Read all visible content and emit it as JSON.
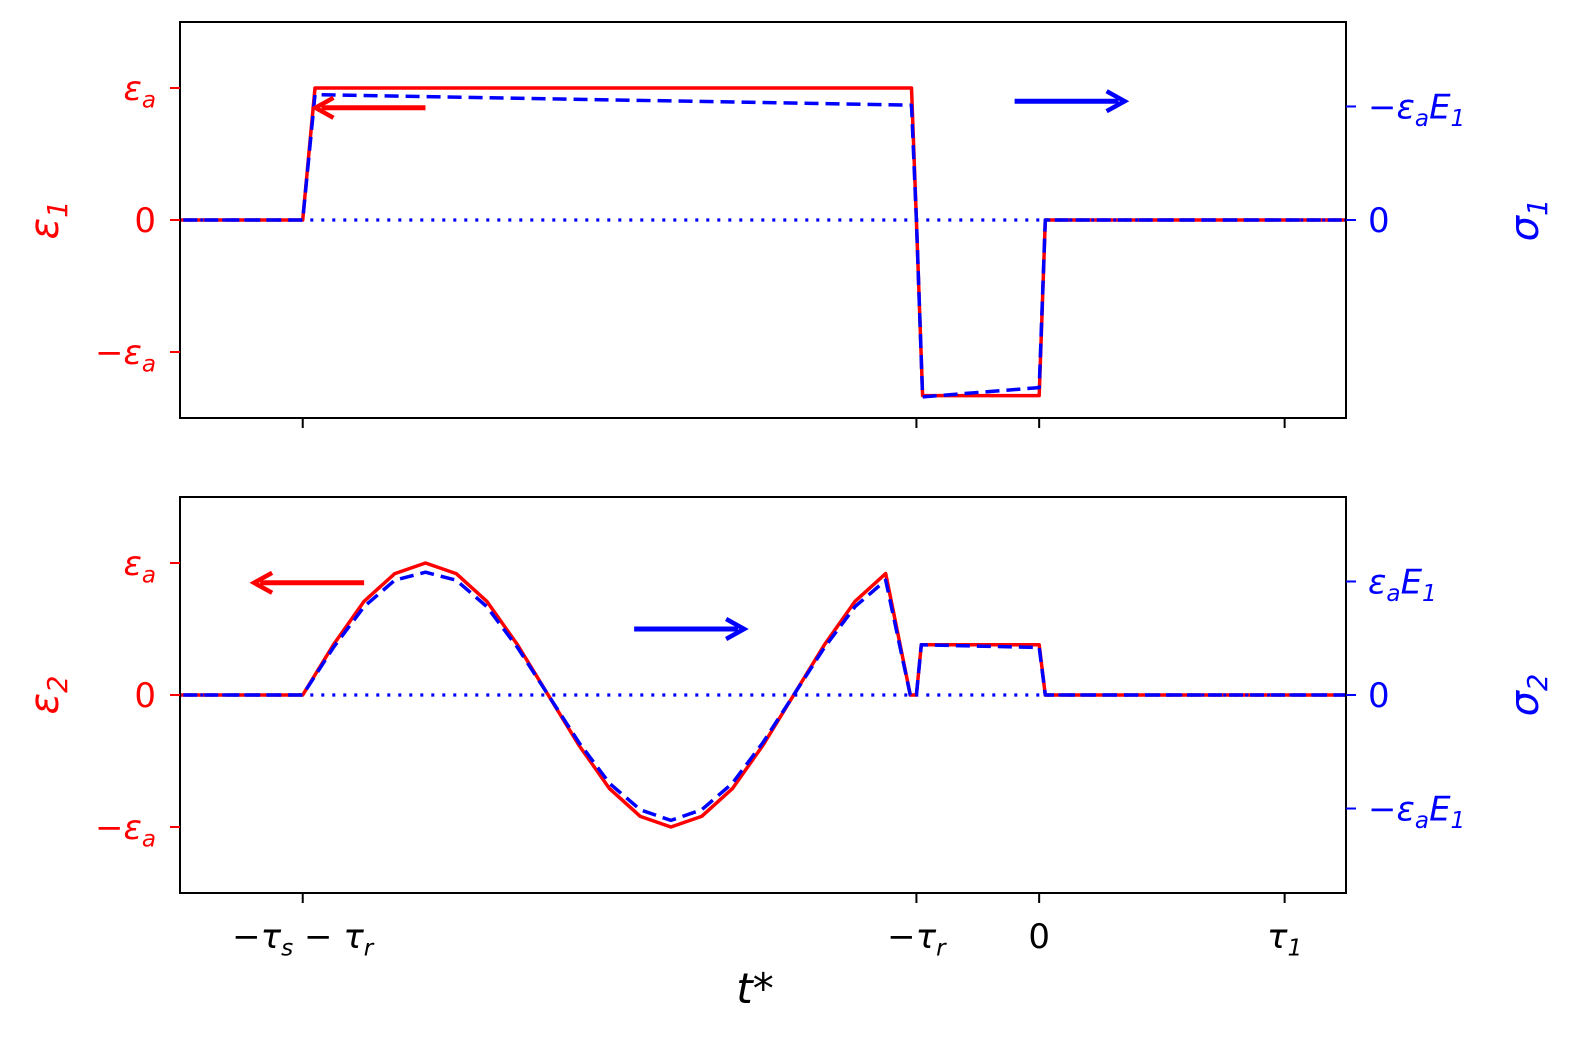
{
  "colors": {
    "strain": "#ff0000",
    "stress": "#0000ff",
    "axis": "#000000"
  },
  "xlabel": "t*",
  "x_ticks": [
    {
      "value": -6,
      "label": "−τs − τr"
    },
    {
      "value": -1,
      "label": "−τr"
    },
    {
      "value": 0,
      "label": "0"
    },
    {
      "value": 2,
      "label": "τ1"
    }
  ],
  "chart_data": [
    {
      "type": "line",
      "xlim": [
        -7,
        2.5
      ],
      "left_ylim": [
        -1.5,
        1.5
      ],
      "right_ylim": [
        -1.5,
        1.5
      ],
      "left_ylabel": "ε1",
      "right_ylabel": "σ1",
      "left_ticks": [
        {
          "value": 1,
          "label": "εa"
        },
        {
          "value": 0,
          "label": "0"
        },
        {
          "value": -1,
          "label": "−εa"
        }
      ],
      "right_ticks": [
        {
          "value": 0.86,
          "label": "−εaE1"
        },
        {
          "value": 0,
          "label": "0"
        }
      ],
      "series": [
        {
          "style": "solid",
          "color": "#ff0000",
          "axis": "left",
          "x": [
            -8,
            -6.0,
            -5.9,
            -1.04,
            -1.0,
            -0.95,
            0.0,
            0.05,
            3
          ],
          "y": [
            0,
            0,
            1.0,
            1.0,
            0.0,
            -1.33,
            -1.33,
            0.0,
            0
          ]
        },
        {
          "style": "dashed",
          "color": "#0000ff",
          "axis": "right",
          "x": [
            -8,
            -6.0,
            -5.9,
            -1.04,
            -1.0,
            -0.95,
            0.0,
            0.05,
            3
          ],
          "y": [
            0,
            0,
            0.95,
            0.87,
            0.0,
            -1.34,
            -1.27,
            0.0,
            0
          ]
        },
        {
          "style": "dotted",
          "color": "#0000ff",
          "axis": "left",
          "x": [
            -8,
            3
          ],
          "y": [
            0,
            0
          ]
        }
      ],
      "arrows": [
        {
          "color": "#ff0000",
          "direction": "left",
          "x": -5.0,
          "y": 0.85
        },
        {
          "color": "#0000ff",
          "direction": "right",
          "x": -0.2,
          "y": 0.9
        }
      ]
    },
    {
      "type": "line",
      "xlim": [
        -7,
        2.5
      ],
      "left_ylim": [
        -1.5,
        1.5
      ],
      "right_ylim": [
        -1.5,
        1.5
      ],
      "left_ylabel": "ε2",
      "right_ylabel": "σ2",
      "left_ticks": [
        {
          "value": 1,
          "label": "εa"
        },
        {
          "value": 0,
          "label": "0"
        },
        {
          "value": -1,
          "label": "−εa"
        }
      ],
      "right_ticks": [
        {
          "value": 0.86,
          "label": "εaE1"
        },
        {
          "value": 0,
          "label": "0"
        },
        {
          "value": -0.86,
          "label": "−εaE1"
        }
      ],
      "series": [
        {
          "style": "solid",
          "color": "#ff0000",
          "axis": "left",
          "x": [
            -8,
            -6.0,
            -5.75,
            -5.5,
            -5.25,
            -5.0,
            -4.75,
            -4.5,
            -4.25,
            -4.0,
            -3.75,
            -3.5,
            -3.25,
            -3.0,
            -2.75,
            -2.5,
            -2.25,
            -2.0,
            -1.75,
            -1.5,
            -1.25,
            -1.05,
            -1.0,
            -0.96,
            0.0,
            0.05,
            3
          ],
          "y": [
            0,
            0,
            0.38,
            0.71,
            0.92,
            1.0,
            0.92,
            0.71,
            0.38,
            0.0,
            -0.38,
            -0.71,
            -0.92,
            -1.0,
            -0.92,
            -0.71,
            -0.38,
            0.0,
            0.38,
            0.71,
            0.92,
            0.0,
            0.0,
            0.38,
            0.38,
            0.0,
            0
          ]
        },
        {
          "style": "dashed",
          "color": "#0000ff",
          "axis": "right",
          "x": [
            -8,
            -6.0,
            -5.75,
            -5.5,
            -5.25,
            -5.0,
            -4.75,
            -4.5,
            -4.25,
            -4.0,
            -3.75,
            -3.5,
            -3.25,
            -3.0,
            -2.75,
            -2.5,
            -2.25,
            -2.0,
            -1.75,
            -1.5,
            -1.25,
            -1.05,
            -1.0,
            -0.96,
            0.0,
            0.05,
            3
          ],
          "y": [
            0,
            0,
            0.36,
            0.67,
            0.87,
            0.93,
            0.87,
            0.67,
            0.36,
            0.0,
            -0.36,
            -0.67,
            -0.87,
            -0.95,
            -0.87,
            -0.67,
            -0.36,
            0.0,
            0.36,
            0.67,
            0.87,
            0.0,
            0.0,
            0.38,
            0.36,
            0.0,
            0
          ]
        },
        {
          "style": "dotted",
          "color": "#0000ff",
          "axis": "left",
          "x": [
            -8,
            3
          ],
          "y": [
            0,
            0
          ]
        }
      ],
      "arrows": [
        {
          "color": "#ff0000",
          "direction": "left",
          "x": -5.5,
          "y": 0.85
        },
        {
          "color": "#0000ff",
          "direction": "right",
          "x": -3.3,
          "y": 0.5
        }
      ]
    }
  ]
}
